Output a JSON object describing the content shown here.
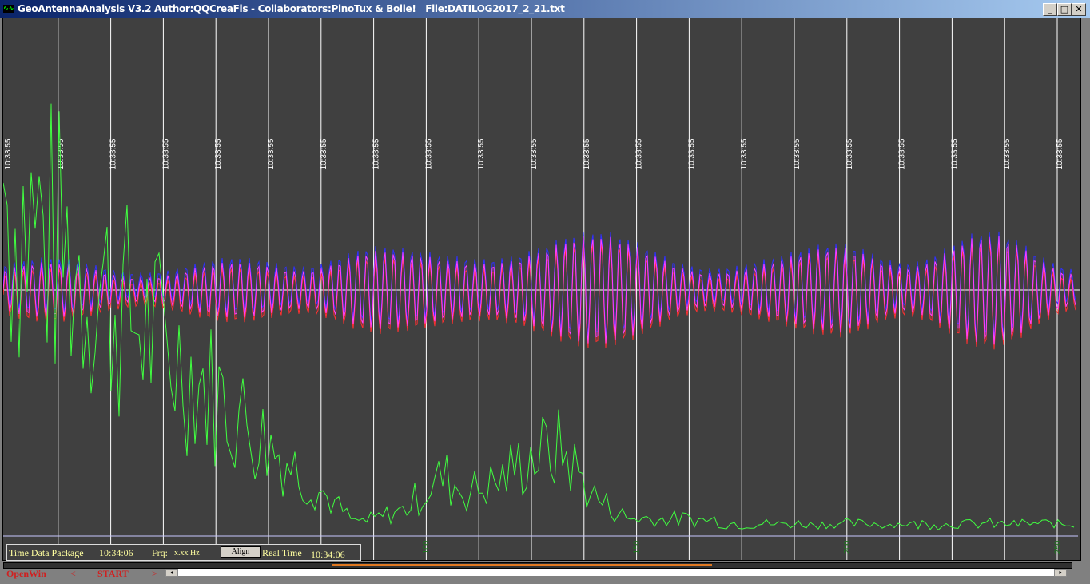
{
  "window": {
    "title": "GeoAntennaAnalysis V3.2 Author:QQCreaFis - Collaborators:PinoTux & Bolle!   File:DATILOG2017_2_21.txt",
    "minimize": "_",
    "maximize": "□",
    "close": "✕"
  },
  "plot": {
    "time_label": "10:33:55",
    "time_label_count": 21,
    "x_ticks": [
      "100",
      "150",
      "200",
      "250"
    ],
    "colors": {
      "background": "#404040",
      "grid": "#ffffff",
      "channel_a": "#ff3030",
      "channel_b": "#3030ff",
      "channel_mix": "#ff40ff",
      "spectrum": "#40ff40",
      "axis_labels": "#1a7a1a"
    }
  },
  "info": {
    "time_package_label": "Time Data Package",
    "time_package_value": "10:34:06",
    "frq_label": "Frq:",
    "frq_value": "x.xx Hz",
    "align_button": "Align",
    "real_time_label": "Real Time",
    "real_time_value": "10:34:06"
  },
  "controls": {
    "openwin": "OpenWin",
    "prev": "<",
    "start": "START",
    "next": ">"
  },
  "scroll": {
    "position": 0
  }
}
